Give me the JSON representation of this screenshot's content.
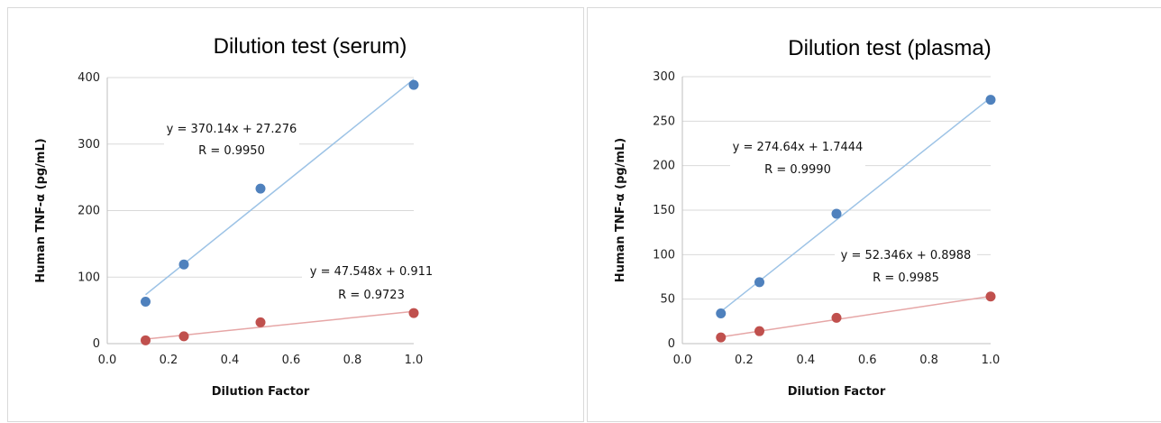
{
  "chart_data": [
    {
      "type": "scatter",
      "title": "Dilution test (serum)",
      "xlabel": "Dilution Factor",
      "ylabel": "Human TNF-α  (pg/mL)",
      "xlim": [
        0.0,
        1.0
      ],
      "ylim": [
        0,
        400
      ],
      "x_ticks": [
        "0.0",
        "0.2",
        "0.4",
        "0.6",
        "0.8",
        "1.0"
      ],
      "y_ticks": [
        "0",
        "100",
        "200",
        "300",
        "400"
      ],
      "grid": "horizontal",
      "series": [
        {
          "color": "#4f81bd",
          "trend_color": "#9dc3e6",
          "x": [
            0.125,
            0.25,
            0.5,
            1.0
          ],
          "y": [
            63,
            119,
            233,
            389
          ],
          "trendline": {
            "slope": 370.14,
            "intercept": 27.276
          },
          "equation": "y = 370.14x + 27.276",
          "r_label": "R = 0.9950"
        },
        {
          "color": "#c0504d",
          "trend_color": "#e6a6a6",
          "x": [
            0.125,
            0.25,
            0.5,
            1.0
          ],
          "y": [
            5,
            11,
            32,
            46
          ],
          "trendline": {
            "slope": 47.548,
            "intercept": 0.911
          },
          "equation": "y = 47.548x + 0.911",
          "r_label": "R = 0.9723"
        }
      ]
    },
    {
      "type": "scatter",
      "title": "Dilution test (plasma)",
      "xlabel": "Dilution Factor",
      "ylabel": "Human TNF-α  (pg/mL)",
      "xlim": [
        0.0,
        1.0
      ],
      "ylim": [
        0,
        300
      ],
      "x_ticks": [
        "0.0",
        "0.2",
        "0.4",
        "0.6",
        "0.8",
        "1.0"
      ],
      "y_ticks": [
        "0",
        "50",
        "100",
        "150",
        "200",
        "250",
        "300"
      ],
      "grid": "horizontal",
      "series": [
        {
          "color": "#4f81bd",
          "trend_color": "#9dc3e6",
          "x": [
            0.125,
            0.25,
            0.5,
            1.0
          ],
          "y": [
            34,
            69,
            146,
            274
          ],
          "trendline": {
            "slope": 274.64,
            "intercept": 1.7444
          },
          "equation": "y = 274.64x + 1.7444",
          "r_label": "R = 0.9990"
        },
        {
          "color": "#c0504d",
          "trend_color": "#e6a6a6",
          "x": [
            0.125,
            0.25,
            0.5,
            1.0
          ],
          "y": [
            7,
            14,
            29,
            53
          ],
          "trendline": {
            "slope": 52.346,
            "intercept": 0.8988
          },
          "equation": "y = 52.346x + 0.8988",
          "r_label": "R = 0.9985"
        }
      ]
    }
  ]
}
